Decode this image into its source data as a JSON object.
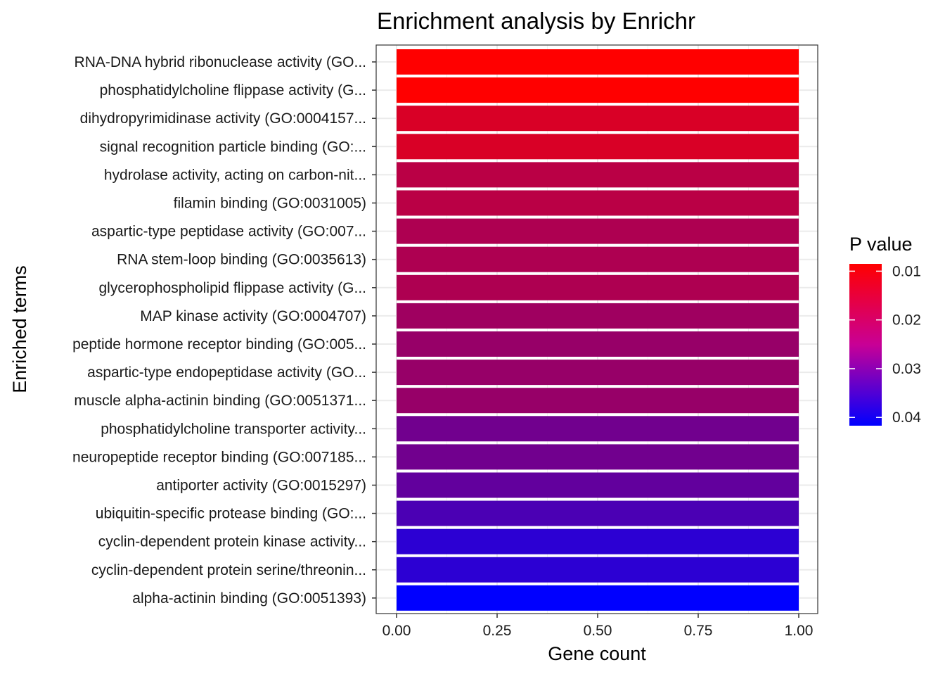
{
  "chart_data": {
    "type": "bar",
    "orientation": "horizontal",
    "title": "Enrichment analysis by Enrichr",
    "xlabel": "Gene count",
    "ylabel": "Enriched terms",
    "xlim": [
      0,
      1
    ],
    "x_ticks": [
      "0.00",
      "0.25",
      "0.50",
      "0.75",
      "1.00"
    ],
    "x_tick_values": [
      0,
      0.25,
      0.5,
      0.75,
      1.0
    ],
    "categories": [
      "RNA-DNA hybrid ribonuclease activity (GO...",
      "phosphatidylcholine flippase activity (G...",
      "dihydropyrimidinase activity (GO:0004157...",
      "signal recognition particle binding (GO:...",
      "hydrolase activity, acting on carbon-nit...",
      "filamin binding (GO:0031005)",
      "aspartic-type peptidase activity (GO:007...",
      "RNA stem-loop binding (GO:0035613)",
      "glycerophospholipid flippase activity (G...",
      "MAP kinase activity (GO:0004707)",
      "peptide hormone receptor binding (GO:005...",
      "aspartic-type endopeptidase activity (GO...",
      "muscle alpha-actinin binding (GO:0051371...",
      "phosphatidylcholine transporter activity...",
      "neuropeptide receptor binding (GO:007185...",
      "antiporter activity (GO:0015297)",
      "ubiquitin-specific protease binding (GO:...",
      "cyclin-dependent protein kinase activity...",
      "cyclin-dependent protein serine/threonin...",
      "alpha-actinin binding (GO:0051393)"
    ],
    "values": [
      1,
      1,
      1,
      1,
      1,
      1,
      1,
      1,
      1,
      1,
      1,
      1,
      1,
      1,
      1,
      1,
      1,
      1,
      1,
      1
    ],
    "p_values": [
      0.0085,
      0.0085,
      0.0135,
      0.0135,
      0.0175,
      0.0175,
      0.019,
      0.019,
      0.019,
      0.021,
      0.022,
      0.022,
      0.022,
      0.027,
      0.027,
      0.029,
      0.032,
      0.036,
      0.036,
      0.0417
    ],
    "legend": {
      "title": "P value",
      "position": "right",
      "ticks": [
        "0.01",
        "0.02",
        "0.03",
        "0.04"
      ],
      "tick_values": [
        0.01,
        0.02,
        0.03,
        0.04
      ],
      "range": [
        0.0085,
        0.0417
      ],
      "low_color": "#ff0000",
      "high_color": "#0000ff"
    },
    "grid": true
  }
}
